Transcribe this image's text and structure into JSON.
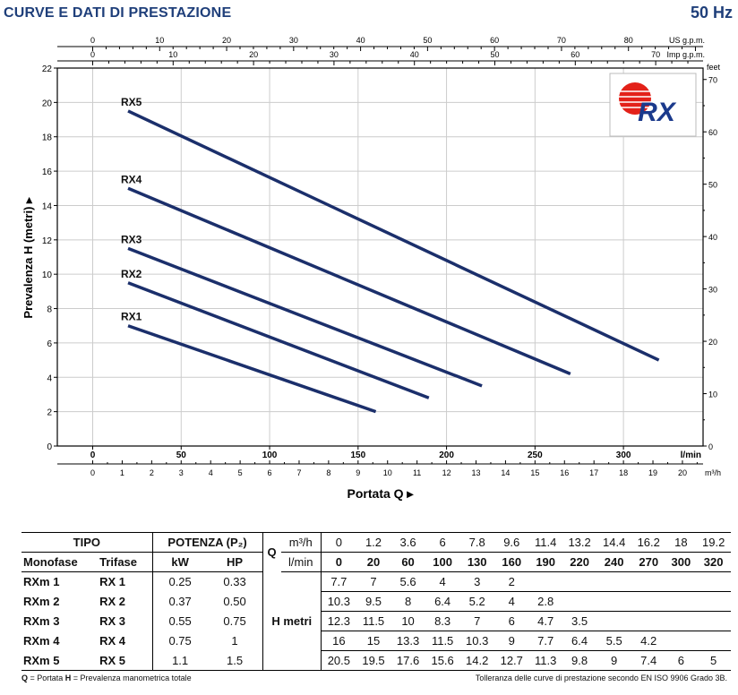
{
  "header": {
    "title": "CURVE E DATI DI PRESTAZIONE",
    "frequency": "50 Hz"
  },
  "chart_data": {
    "type": "line",
    "colors": {
      "line": "#1b2f6b",
      "axis": "#000000",
      "grid": "#cccccc",
      "logo_red": "#e32119",
      "logo_blue": "#1b3a8c"
    },
    "ylabel": "Prevalenza H (metri)",
    "xlabel": "Portata Q",
    "x_unit": "l/min",
    "ylim": [
      0,
      22
    ],
    "xlim": [
      -20,
      345
    ],
    "y_ticks": [
      0,
      2,
      4,
      6,
      8,
      10,
      12,
      14,
      16,
      18,
      20,
      22
    ],
    "x_ticks": [
      0,
      50,
      100,
      150,
      200,
      250,
      300
    ],
    "top_axes": [
      {
        "unit": "US g.p.m.",
        "max": 90,
        "step": 10,
        "labels": [
          0,
          10,
          20,
          30,
          40,
          50,
          60,
          70,
          80
        ]
      },
      {
        "unit": "Imp g.p.m.",
        "max": 75,
        "step": 10,
        "labels": [
          0,
          10,
          20,
          30,
          40,
          50,
          60,
          70
        ]
      }
    ],
    "right_axis": {
      "unit": "feet",
      "labels": [
        0,
        10,
        20,
        30,
        40,
        50,
        60,
        70
      ]
    },
    "bottom_axis2": {
      "unit": "m³/h",
      "labels": [
        0,
        1,
        2,
        3,
        4,
        5,
        6,
        7,
        8,
        9,
        10,
        11,
        12,
        13,
        14,
        15,
        16,
        17,
        18,
        19,
        20
      ]
    },
    "grid": true,
    "series": [
      {
        "name": "RX1",
        "x": [
          20,
          160
        ],
        "y": [
          7,
          2
        ]
      },
      {
        "name": "RX2",
        "x": [
          20,
          190
        ],
        "y": [
          9.5,
          2.8
        ]
      },
      {
        "name": "RX3",
        "x": [
          20,
          220
        ],
        "y": [
          11.5,
          3.5
        ]
      },
      {
        "name": "RX4",
        "x": [
          20,
          270
        ],
        "y": [
          15,
          4.2
        ]
      },
      {
        "name": "RX5",
        "x": [
          20,
          320
        ],
        "y": [
          19.5,
          5
        ]
      }
    ],
    "logo": "RX"
  },
  "table": {
    "h_tipo": "TIPO",
    "h_potenza": "POTENZA (P₂)",
    "h_q": "Q",
    "h_m3h": "m³/h",
    "h_lmin": "l/min",
    "h_monofase": "Monofase",
    "h_trifase": "Trifase",
    "h_kw": "kW",
    "h_hp": "HP",
    "h_metri": "H metri",
    "q_m3h": [
      "0",
      "1.2",
      "3.6",
      "6",
      "7.8",
      "9.6",
      "11.4",
      "13.2",
      "14.4",
      "16.2",
      "18",
      "19.2"
    ],
    "q_lmin": [
      "0",
      "20",
      "60",
      "100",
      "130",
      "160",
      "190",
      "220",
      "240",
      "270",
      "300",
      "320"
    ],
    "rows": [
      {
        "mono": "RXm 1",
        "tri": "RX 1",
        "kw": "0.25",
        "hp": "0.33",
        "h": [
          "7.7",
          "7",
          "5.6",
          "4",
          "3",
          "2",
          "",
          "",
          "",
          "",
          "",
          ""
        ]
      },
      {
        "mono": "RXm 2",
        "tri": "RX 2",
        "kw": "0.37",
        "hp": "0.50",
        "h": [
          "10.3",
          "9.5",
          "8",
          "6.4",
          "5.2",
          "4",
          "2.8",
          "",
          "",
          "",
          "",
          ""
        ]
      },
      {
        "mono": "RXm 3",
        "tri": "RX 3",
        "kw": "0.55",
        "hp": "0.75",
        "h": [
          "12.3",
          "11.5",
          "10",
          "8.3",
          "7",
          "6",
          "4.7",
          "3.5",
          "",
          "",
          "",
          ""
        ]
      },
      {
        "mono": "RXm 4",
        "tri": "RX 4",
        "kw": "0.75",
        "hp": "1",
        "h": [
          "16",
          "15",
          "13.3",
          "11.5",
          "10.3",
          "9",
          "7.7",
          "6.4",
          "5.5",
          "4.2",
          "",
          ""
        ]
      },
      {
        "mono": "RXm 5",
        "tri": "RX 5",
        "kw": "1.1",
        "hp": "1.5",
        "h": [
          "20.5",
          "19.5",
          "17.6",
          "15.6",
          "14.2",
          "12.7",
          "11.3",
          "9.8",
          "9",
          "7.4",
          "6",
          "5"
        ]
      }
    ]
  },
  "footer": {
    "legend_q": "Q",
    "legend_q_text": " = Portata   ",
    "legend_h": "H",
    "legend_h_text": " = Prevalenza manometrica totale",
    "tolerance": "Tolleranza delle curve di prestazione secondo EN ISO 9906 Grado 3B."
  }
}
